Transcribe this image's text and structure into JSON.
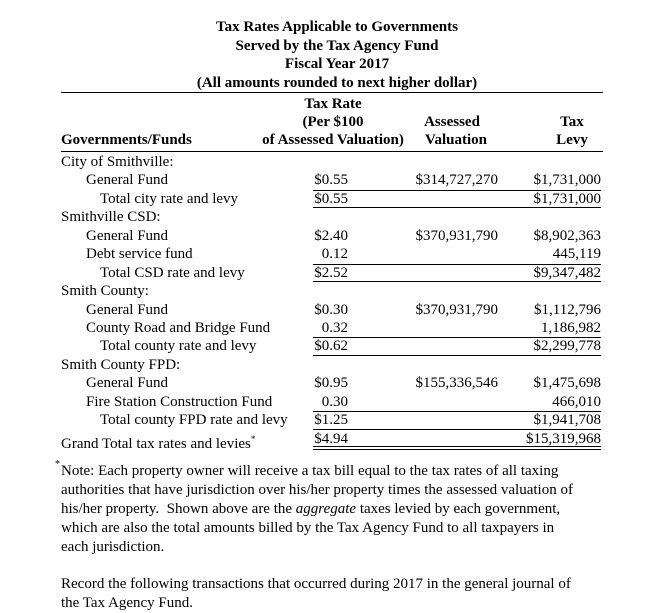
{
  "title": {
    "lines": [
      "Tax Rates Applicable to Governments",
      "Served by the Tax Agency Fund",
      "Fiscal Year 2017",
      "(All amounts rounded to next higher dollar)"
    ]
  },
  "headers": {
    "governments": "Governments/Funds",
    "rate_1": "Tax Rate",
    "rate_2": "(Per $100",
    "rate_3": "of Assessed Valuation)",
    "valuation_1": "Assessed",
    "valuation_2": "Valuation",
    "levy_1": "Tax",
    "levy_2": "Levy"
  },
  "rows": [
    {
      "type": "group",
      "name": "City of Smithville:"
    },
    {
      "type": "fund",
      "name": "General Fund",
      "rate": "$0.55",
      "valuation": "$314,727,270",
      "levy": "$1,731,000"
    },
    {
      "type": "total",
      "name": "Total city rate and levy",
      "rate": "$0.55",
      "levy": "$1,731,000"
    },
    {
      "type": "group",
      "name": "Smithville CSD:"
    },
    {
      "type": "fund",
      "name": "General Fund",
      "rate": "$2.40",
      "valuation": "$370,931,790",
      "levy": "$8,902,363"
    },
    {
      "type": "fund",
      "name": "Debt service fund",
      "rate": "0.12",
      "levy": "445,119"
    },
    {
      "type": "total",
      "name": "Total CSD rate and levy",
      "rate": "$2.52",
      "levy": "$9,347,482"
    },
    {
      "type": "group",
      "name": "Smith County:"
    },
    {
      "type": "fund",
      "name": "General Fund",
      "rate": "$0.30",
      "valuation": "$370,931,790",
      "levy": "$1,112,796"
    },
    {
      "type": "fund",
      "name": "County Road and Bridge Fund",
      "rate": "0.32",
      "levy": "1,186,982"
    },
    {
      "type": "total",
      "name": "Total county rate and levy",
      "rate": "$0.62",
      "levy": "$2,299,778"
    },
    {
      "type": "group",
      "name": "Smith County FPD:"
    },
    {
      "type": "fund",
      "name": "General Fund",
      "rate": "$0.95",
      "valuation": "$155,336,546",
      "levy": "$1,475,698"
    },
    {
      "type": "fund",
      "name": "Fire Station Construction Fund",
      "rate": "0.30",
      "levy": "466,010"
    },
    {
      "type": "total",
      "name": "Total county FPD rate and levy",
      "rate": "$1.25",
      "levy": "$1,941,708"
    },
    {
      "type": "grand",
      "name": "Grand Total tax rates and levies",
      "marker": "*",
      "rate": "$4.94",
      "levy": "$15,319,968"
    }
  ],
  "note": {
    "marker": "*",
    "line1": "Note: Each property owner will receive a tax bill equal to the tax rates of all taxing",
    "line2": "authorities that have jurisdiction over his/her property times the assessed valuation of",
    "line3a": "his/her property.  Shown above are the ",
    "line3b": "aggregate",
    "line3c": " taxes levied by each government,",
    "line4": "which are also the total amounts billed by the Tax Agency Fund to all taxpayers in",
    "line5": "each jurisdiction."
  },
  "instruction": {
    "line1": "Record the following transactions that occurred during 2017 in the general journal of",
    "line2": "the Tax Agency Fund."
  }
}
